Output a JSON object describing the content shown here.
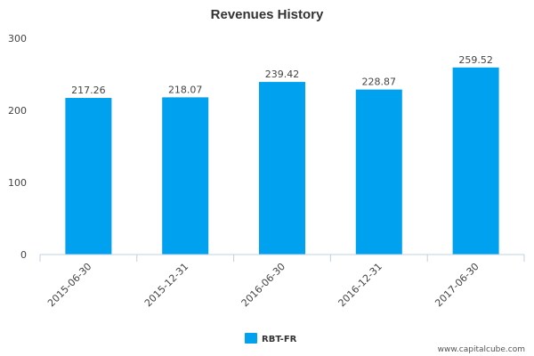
{
  "chart_data": {
    "type": "bar",
    "title": "Revenues History",
    "categories": [
      "2015-06-30",
      "2015-12-31",
      "2016-06-30",
      "2016-12-31",
      "2017-06-30"
    ],
    "series": [
      {
        "name": "RBT-FR",
        "values": [
          217.26,
          218.07,
          239.42,
          228.87,
          259.52
        ],
        "labels": [
          "217.26",
          "218.07",
          "239.42",
          "228.87",
          "259.52"
        ],
        "color": "#00A2EF"
      }
    ],
    "yticks": [
      "0",
      "100",
      "200",
      "300"
    ],
    "ylim": [
      0,
      300
    ],
    "xlabel": "",
    "ylabel": "",
    "grid": false,
    "legend": "bottom-center"
  },
  "footer": {
    "source": "www.capitalcube.com"
  },
  "colors": {
    "bar": "#00A2EF",
    "axis": "#C0D0E0"
  }
}
